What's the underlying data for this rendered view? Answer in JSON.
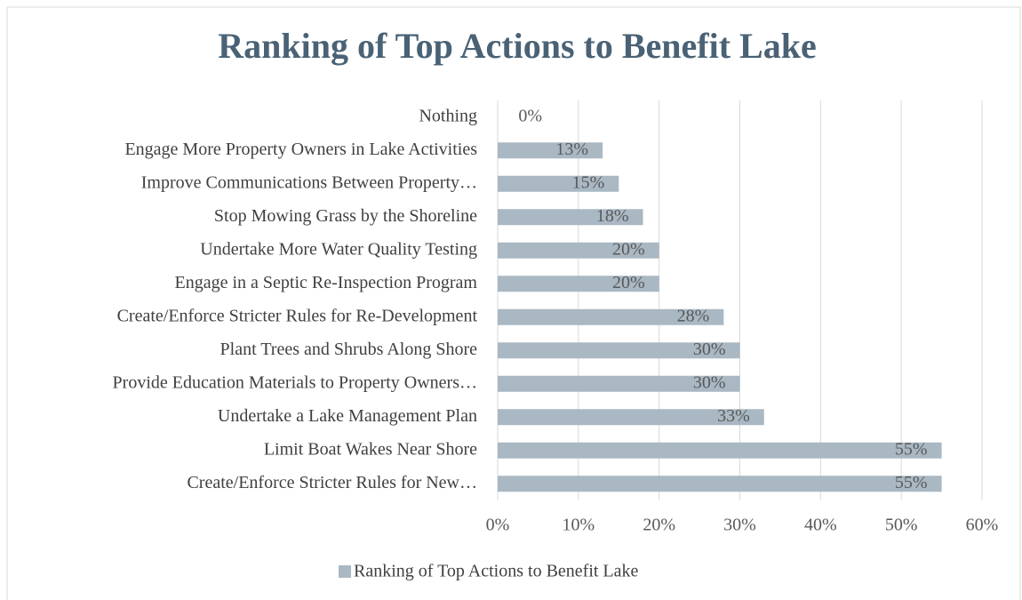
{
  "chart_data": {
    "type": "bar",
    "orientation": "horizontal",
    "title": "Ranking of Top Actions to Benefit Lake",
    "categories": [
      "Nothing",
      "Engage More Property Owners in Lake Activities",
      "Improve Communications Between Property…",
      "Stop Mowing Grass by the Shoreline",
      "Undertake More Water Quality Testing",
      "Engage in a Septic Re-Inspection Program",
      "Create/Enforce Stricter Rules for Re-Development",
      "Plant Trees and Shrubs Along Shore",
      "Provide Education Materials to Property Owners…",
      "Undertake a Lake Management Plan",
      "Limit Boat Wakes Near Shore",
      "Create/Enforce Stricter Rules for New…"
    ],
    "series": [
      {
        "name": "Ranking of Top Actions to Benefit Lake",
        "color": "#a9b8c3",
        "values": [
          0,
          13,
          15,
          18,
          20,
          20,
          28,
          30,
          30,
          33,
          55,
          55
        ],
        "value_labels": [
          "0%",
          "13%",
          "15%",
          "18%",
          "20%",
          "20%",
          "28%",
          "30%",
          "30%",
          "33%",
          "55%",
          "55%"
        ]
      }
    ],
    "xlim": [
      0,
      60
    ],
    "xticks": [
      {
        "value": 0,
        "label": "0%"
      },
      {
        "value": 10,
        "label": "10%"
      },
      {
        "value": 20,
        "label": "20%"
      },
      {
        "value": 30,
        "label": "30%"
      },
      {
        "value": 40,
        "label": "40%"
      },
      {
        "value": 50,
        "label": "50%"
      },
      {
        "value": 60,
        "label": "60%"
      }
    ],
    "grid": true,
    "legend": "bottom"
  }
}
